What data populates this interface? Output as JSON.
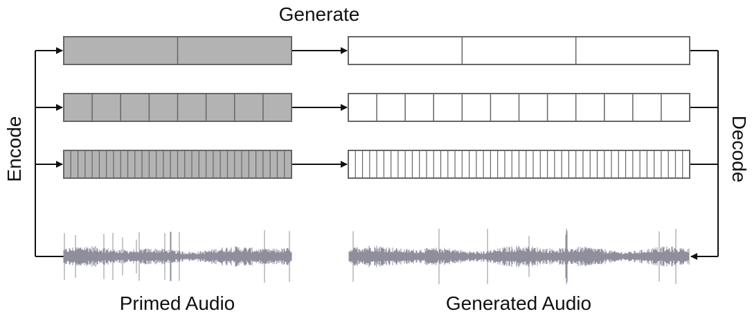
{
  "labels": {
    "generate": "Generate",
    "encode": "Encode",
    "decode": "Decode",
    "primed_audio": "Primed Audio",
    "generated_audio": "Generated Audio"
  },
  "rows": [
    {
      "primed_segments": 2,
      "generated_segments": 3
    },
    {
      "primed_segments": 8,
      "generated_segments": 12
    },
    {
      "primed_segments": 32,
      "generated_segments": 48
    }
  ],
  "colors": {
    "primed_fill": "#b3b3b3",
    "generated_fill": "#ffffff",
    "stroke": "#666666",
    "waveform": "#8e8e9c",
    "line": "#111111"
  }
}
